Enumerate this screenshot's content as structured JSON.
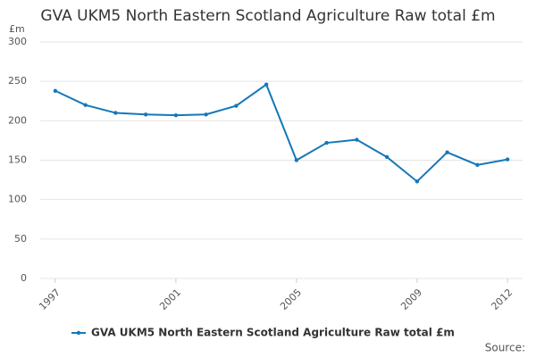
{
  "chart_data": {
    "type": "line",
    "title": "GVA UKM5 North Eastern Scotland Agriculture Raw total £m",
    "y_label": "£m",
    "source": "Source:",
    "x": [
      1997,
      1998,
      1999,
      2000,
      2001,
      2002,
      2003,
      2004,
      2005,
      2006,
      2007,
      2008,
      2009,
      2010,
      2011,
      2012
    ],
    "series": [
      {
        "name": "GVA UKM5 North Eastern Scotland Agriculture Raw total £m",
        "color": "#1478b8",
        "values": [
          238,
          220,
          210,
          208,
          207,
          208,
          219,
          246,
          150,
          172,
          176,
          154,
          123,
          160,
          144,
          151
        ]
      }
    ],
    "xlim": [
      1996.5,
      2012.5
    ],
    "xticks": [
      1997,
      2001,
      2005,
      2009,
      2012
    ],
    "ylim": [
      0,
      300
    ],
    "yticks": [
      0,
      50,
      100,
      150,
      200,
      250,
      300
    ],
    "grid": true,
    "legend": "bottom"
  }
}
